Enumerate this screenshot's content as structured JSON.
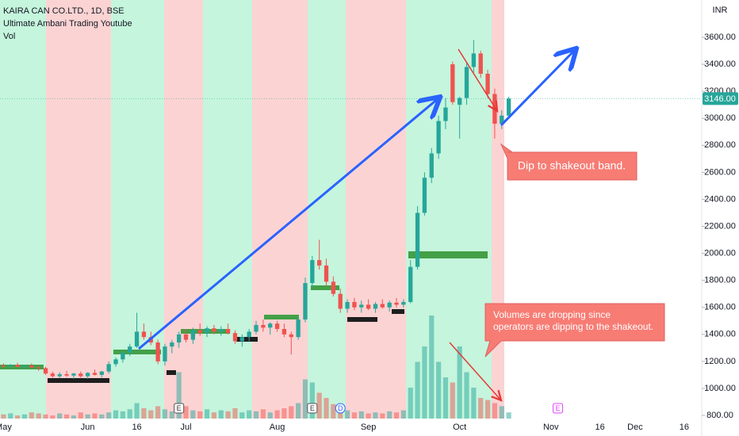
{
  "chart_data": {
    "type": "candlestick",
    "title": "KAIRA CAN CO.LTD., 1D, BSE",
    "subtitle": "Ultimate Ambani Trading Youtube",
    "volume_label": "Vol",
    "currency": "INR",
    "up_color": "#26a69a",
    "down_color": "#ef5350",
    "ylim": [
      765,
      3876
    ],
    "yticks": [
      {
        "value": 800,
        "label": "800.00"
      },
      {
        "value": 1000,
        "label": "1000.00"
      },
      {
        "value": 1200,
        "label": "1200.00"
      },
      {
        "value": 1400,
        "label": "1400.00"
      },
      {
        "value": 1600,
        "label": "1600.00"
      },
      {
        "value": 1800,
        "label": "1800.00"
      },
      {
        "value": 2000,
        "label": "2000.00"
      },
      {
        "value": 2200,
        "label": "2200.00"
      },
      {
        "value": 2400,
        "label": "2400.00"
      },
      {
        "value": 2600,
        "label": "2600.00"
      },
      {
        "value": 2800,
        "label": "2800.00"
      },
      {
        "value": 3000,
        "label": "3000.00"
      },
      {
        "value": 3200,
        "label": "3200.00"
      },
      {
        "value": 3400,
        "label": "3400.00"
      },
      {
        "value": 3600,
        "label": "3600.00"
      }
    ],
    "last_price": {
      "value": 3146,
      "label": "3146.00"
    },
    "categories": [
      "May",
      null,
      null,
      null,
      null,
      null,
      null,
      null,
      null,
      null,
      null,
      null,
      "Jun",
      null,
      null,
      null,
      null,
      null,
      null,
      "16",
      null,
      null,
      null,
      null,
      null,
      null,
      "Jul",
      null,
      null,
      null,
      null,
      null,
      null,
      null,
      null,
      null,
      null,
      null,
      null,
      "Aug",
      null,
      null,
      null,
      null,
      null,
      null,
      null,
      null,
      null,
      null,
      null,
      null,
      "Sep",
      null,
      null,
      null,
      null,
      null,
      null,
      null,
      null,
      null,
      null,
      null,
      null,
      "Oct",
      null,
      null,
      null,
      null,
      null,
      null,
      null,
      null,
      null,
      null,
      null,
      null,
      "Nov",
      null,
      null,
      null,
      null,
      null,
      null,
      "16",
      null,
      null,
      null,
      null,
      "Dec",
      null,
      null,
      null,
      null,
      null,
      null,
      "16",
      null,
      null
    ],
    "events": [
      null,
      null,
      null,
      null,
      null,
      null,
      null,
      null,
      null,
      null,
      null,
      null,
      null,
      null,
      null,
      null,
      null,
      null,
      null,
      null,
      null,
      null,
      null,
      null,
      null,
      "E",
      null,
      null,
      null,
      null,
      null,
      null,
      null,
      null,
      null,
      null,
      null,
      null,
      null,
      null,
      null,
      null,
      null,
      null,
      "E",
      null,
      null,
      null,
      "D",
      null,
      null,
      null,
      null,
      null,
      null,
      null,
      null,
      null,
      null,
      null,
      null,
      null,
      null,
      null,
      null,
      null,
      null,
      null,
      null,
      null,
      null,
      null,
      null,
      null,
      null,
      null,
      null,
      null,
      null,
      "E",
      null,
      null,
      null,
      null,
      null,
      null,
      null,
      null,
      null,
      null,
      null,
      null,
      null,
      null,
      null,
      null,
      null,
      null,
      null,
      null
    ],
    "open": [
      1170,
      1165,
      1175,
      1160,
      1170,
      1155,
      1150,
      1110,
      1090,
      1105,
      1095,
      1110,
      1090,
      1115,
      1100,
      1125,
      1180,
      1215,
      1265,
      1310,
      1420,
      1380,
      1340,
      1200,
      1310,
      1340,
      1400,
      1360,
      1430,
      1410,
      1445,
      1420,
      1440,
      1410,
      1350,
      1380,
      1420,
      1470,
      1450,
      1480,
      1440,
      1400,
      1380,
      1510,
      1780,
      1950,
      1910,
      1790,
      1700,
      1590,
      1640,
      1600,
      1620,
      1590,
      1625,
      1600,
      1635,
      1620,
      1640,
      1900,
      2300,
      2560,
      2740,
      2980,
      3400,
      3100,
      3150,
      3380,
      3480,
      3330,
      3180,
      2960,
      3020,
      null,
      null,
      null,
      null,
      null,
      null,
      null,
      null,
      null,
      null,
      null,
      null,
      null,
      null,
      null,
      null,
      null,
      null,
      null,
      null,
      null,
      null,
      null,
      null,
      null,
      null,
      null
    ],
    "high": [
      1185,
      1180,
      1190,
      1175,
      1185,
      1170,
      1160,
      1125,
      1120,
      1130,
      1115,
      1125,
      1120,
      1140,
      1130,
      1200,
      1230,
      1280,
      1330,
      1560,
      1480,
      1420,
      1360,
      1330,
      1360,
      1420,
      1440,
      1450,
      1480,
      1460,
      1470,
      1460,
      1480,
      1430,
      1400,
      1440,
      1500,
      1510,
      1490,
      1500,
      1480,
      1420,
      1540,
      1820,
      1980,
      2100,
      1960,
      1830,
      1740,
      1660,
      1670,
      1650,
      1660,
      1640,
      1660,
      1650,
      1670,
      1660,
      1950,
      2350,
      2600,
      2780,
      3020,
      3150,
      3420,
      3160,
      3420,
      3580,
      3500,
      3360,
      3220,
      3060,
      3160,
      null,
      null,
      null,
      null,
      null,
      null,
      null,
      null,
      null,
      null,
      null,
      null,
      null,
      null,
      null,
      null,
      null,
      null,
      null,
      null,
      null,
      null,
      null,
      null,
      null,
      null,
      null
    ],
    "low": [
      1150,
      1145,
      1155,
      1140,
      1150,
      1130,
      1100,
      1080,
      1075,
      1085,
      1070,
      1080,
      1070,
      1095,
      1080,
      1110,
      1160,
      1190,
      1240,
      1300,
      1360,
      1320,
      1180,
      1170,
      1260,
      1300,
      1340,
      1330,
      1390,
      1380,
      1400,
      1390,
      1400,
      1330,
      1310,
      1350,
      1400,
      1420,
      1400,
      1420,
      1380,
      1250,
      1360,
      1490,
      1750,
      1880,
      1760,
      1680,
      1560,
      1560,
      1580,
      1560,
      1580,
      1560,
      1590,
      1570,
      1600,
      1600,
      1630,
      1880,
      2280,
      2520,
      2700,
      2920,
      3100,
      2850,
      3100,
      3340,
      3300,
      3150,
      2850,
      2920,
      3000,
      null,
      null,
      null,
      null,
      null,
      null,
      null,
      null,
      null,
      null,
      null,
      null,
      null,
      null,
      null,
      null,
      null,
      null,
      null,
      null,
      null,
      null,
      null,
      null,
      null,
      null,
      null
    ],
    "close": [
      1165,
      1175,
      1160,
      1170,
      1155,
      1150,
      1110,
      1090,
      1105,
      1095,
      1110,
      1090,
      1115,
      1100,
      1125,
      1180,
      1215,
      1265,
      1310,
      1420,
      1380,
      1340,
      1200,
      1310,
      1340,
      1400,
      1360,
      1430,
      1410,
      1445,
      1420,
      1440,
      1410,
      1350,
      1380,
      1420,
      1470,
      1450,
      1480,
      1440,
      1400,
      1380,
      1510,
      1780,
      1950,
      1910,
      1790,
      1700,
      1590,
      1640,
      1600,
      1620,
      1590,
      1625,
      1600,
      1635,
      1620,
      1640,
      1900,
      2300,
      2560,
      2740,
      2980,
      3080,
      3120,
      3150,
      3380,
      3480,
      3330,
      3180,
      2960,
      3020,
      3146,
      null,
      null,
      null,
      null,
      null,
      null,
      null,
      null,
      null,
      null,
      null,
      null,
      null,
      null,
      null,
      null,
      null,
      null,
      null,
      null,
      null,
      null,
      null,
      null,
      null,
      null,
      null
    ],
    "volume": [
      4,
      5,
      3,
      4,
      6,
      5,
      4,
      3,
      5,
      4,
      3,
      6,
      4,
      5,
      4,
      6,
      8,
      7,
      9,
      15,
      10,
      8,
      12,
      9,
      7,
      45,
      12,
      8,
      7,
      9,
      6,
      8,
      7,
      10,
      6,
      8,
      7,
      9,
      6,
      8,
      10,
      12,
      15,
      38,
      35,
      25,
      20,
      14,
      10,
      8,
      6,
      7,
      5,
      6,
      5,
      7,
      6,
      8,
      30,
      55,
      70,
      100,
      55,
      40,
      35,
      70,
      45,
      30,
      20,
      18,
      15,
      12,
      6,
      null,
      null,
      null,
      null,
      null,
      null,
      null,
      null,
      null,
      null,
      null,
      null,
      null,
      null,
      null,
      null,
      null,
      null,
      null,
      null,
      null,
      null,
      null,
      null,
      null,
      null,
      null
    ],
    "annotations": [
      {
        "lines": [
          "Dip to shakeout band."
        ]
      },
      {
        "lines": [
          "Volumes are dropping since",
          "operators are dipping to the shakeout."
        ]
      }
    ]
  }
}
